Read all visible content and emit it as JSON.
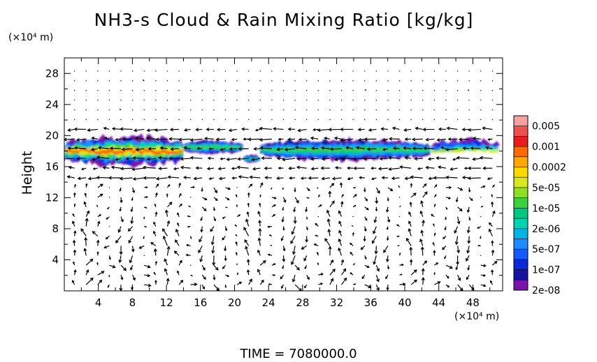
{
  "chart_data": {
    "type": "heatmap",
    "title": "NH3-s Cloud & Rain Mixing Ratio [kg/kg]",
    "ylabel": "Height",
    "x_unit_label": "(×10⁴ m)",
    "y_unit_label": "(×10⁴ m)",
    "xlim": [
      0,
      51.5
    ],
    "ylim": [
      0,
      30
    ],
    "x_ticks": [
      4,
      8,
      12,
      16,
      20,
      24,
      28,
      32,
      36,
      40,
      44,
      48
    ],
    "y_ticks": [
      4,
      8,
      12,
      16,
      20,
      24,
      28
    ],
    "overlay": "wind vector arrows",
    "colorbar": {
      "labels": [
        "0.005",
        "0.001",
        "0.0002",
        "5e-05",
        "1e-05",
        "2e-06",
        "5e-07",
        "1e-07",
        "2e-08"
      ],
      "colors": [
        "#f8a0a0",
        "#ee5050",
        "#e81c1c",
        "#ff6a00",
        "#ffa800",
        "#ffd800",
        "#d8e81a",
        "#90e020",
        "#3cd23c",
        "#00c880",
        "#00d2b4",
        "#00b4e6",
        "#1e8cff",
        "#145aff",
        "#0a28dc",
        "#1414a0",
        "#7814a8"
      ]
    },
    "cloud_regions": [
      {
        "x_start": 0,
        "x_end": 14,
        "y_bottom": 15.8,
        "y_top": 20.2,
        "peak": "0.001"
      },
      {
        "x_start": 14,
        "x_end": 21,
        "y_bottom": 17.5,
        "y_top": 19.5,
        "peak": "5e-05"
      },
      {
        "x_start": 21,
        "x_end": 23,
        "y_bottom": 16.4,
        "y_top": 17.6,
        "peak": "1e-05"
      },
      {
        "x_start": 23,
        "x_end": 43,
        "y_bottom": 16.6,
        "y_top": 19.7,
        "peak": "5e-05"
      },
      {
        "x_start": 43,
        "x_end": 51.5,
        "y_bottom": 15.8,
        "y_top": 19.8,
        "peak": "0.0002"
      }
    ]
  },
  "time_label": "TIME",
  "time_equals": "=",
  "time_value": "7080000.0"
}
